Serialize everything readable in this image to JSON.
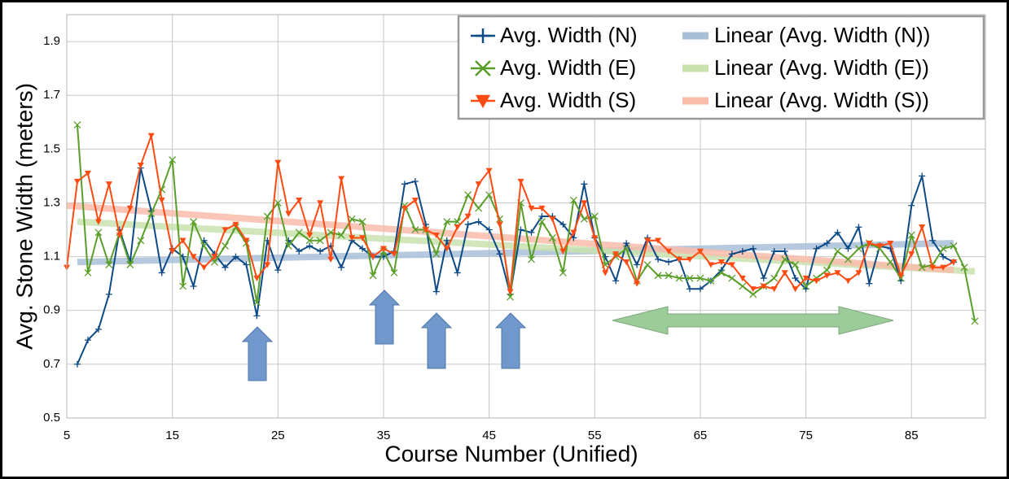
{
  "chart_data": {
    "type": "line",
    "xlabel": "Course Number (Unified)",
    "ylabel": "Avg. Stone Width (meters)",
    "x": [
      5,
      6,
      7,
      8,
      9,
      10,
      11,
      12,
      13,
      14,
      15,
      16,
      17,
      18,
      19,
      20,
      21,
      22,
      23,
      24,
      25,
      26,
      27,
      28,
      29,
      30,
      31,
      32,
      33,
      34,
      35,
      36,
      37,
      38,
      39,
      40,
      41,
      42,
      43,
      44,
      45,
      46,
      47,
      48,
      49,
      50,
      51,
      52,
      53,
      54,
      55,
      56,
      57,
      58,
      59,
      60,
      61,
      62,
      63,
      64,
      65,
      66,
      67,
      68,
      69,
      70,
      71,
      72,
      73,
      74,
      75,
      76,
      77,
      78,
      79,
      80,
      81,
      82,
      83,
      84,
      85,
      86,
      87,
      88,
      89,
      90,
      91
    ],
    "series": [
      {
        "name": "Avg. Width (N)",
        "color": "#0d4a86",
        "marker": "plus",
        "values": [
          null,
          0.7,
          0.79,
          0.83,
          0.96,
          1.2,
          1.08,
          1.43,
          1.27,
          1.04,
          1.13,
          1.1,
          0.99,
          1.16,
          1.11,
          1.06,
          1.1,
          1.07,
          0.88,
          1.16,
          1.05,
          1.16,
          1.12,
          1.14,
          1.12,
          1.14,
          1.06,
          1.16,
          1.13,
          1.1,
          1.1,
          1.12,
          1.37,
          1.38,
          1.22,
          0.97,
          1.16,
          1.04,
          1.22,
          1.23,
          1.2,
          1.11,
          0.96,
          1.2,
          1.19,
          1.25,
          1.25,
          1.22,
          1.17,
          1.37,
          1.17,
          1.1,
          1.01,
          1.15,
          1.07,
          1.17,
          1.09,
          1.08,
          1.09,
          0.98,
          0.98,
          1.01,
          1.05,
          1.11,
          1.12,
          1.13,
          1.02,
          1.12,
          1.12,
          1.02,
          0.98,
          1.13,
          1.15,
          1.19,
          1.13,
          1.21,
          1.0,
          1.14,
          1.13,
          1.01,
          1.29,
          1.4,
          1.16,
          1.1,
          1.08,
          null,
          null
        ]
      },
      {
        "name": "Avg. Width (E)",
        "color": "#5a9e2a",
        "marker": "cross",
        "values": [
          null,
          1.59,
          1.04,
          1.19,
          1.07,
          1.19,
          1.07,
          1.16,
          1.26,
          1.35,
          1.46,
          0.99,
          1.23,
          1.14,
          1.08,
          1.14,
          1.21,
          1.15,
          0.93,
          1.25,
          1.3,
          1.14,
          1.19,
          1.16,
          1.16,
          1.19,
          1.18,
          1.24,
          1.23,
          1.03,
          1.12,
          1.04,
          1.29,
          1.2,
          1.2,
          1.11,
          1.23,
          1.23,
          1.33,
          1.28,
          1.33,
          1.24,
          0.95,
          1.3,
          1.09,
          1.23,
          1.17,
          1.04,
          1.31,
          1.24,
          1.25,
          1.07,
          1.1,
          1.13,
          1.01,
          1.07,
          1.03,
          1.03,
          1.02,
          1.02,
          1.02,
          1.01,
          1.04,
          1.02,
          0.99,
          0.96,
          0.99,
          1.02,
          1.09,
          1.07,
          0.99,
          1.02,
          1.05,
          1.12,
          1.09,
          1.13,
          1.15,
          1.13,
          1.08,
          1.02,
          1.18,
          1.06,
          1.07,
          1.13,
          1.14,
          1.06,
          0.86
        ]
      },
      {
        "name": "Avg. Width (S)",
        "color": "#ff4b12",
        "marker": "triangle",
        "values": [
          1.06,
          1.38,
          1.41,
          1.23,
          1.37,
          1.18,
          1.28,
          1.44,
          1.55,
          1.31,
          1.12,
          1.16,
          1.1,
          1.06,
          1.1,
          1.2,
          1.22,
          1.16,
          1.02,
          1.07,
          1.45,
          1.26,
          1.31,
          1.18,
          1.3,
          1.09,
          1.39,
          1.17,
          1.17,
          1.1,
          1.13,
          1.11,
          1.28,
          1.31,
          1.2,
          1.18,
          1.13,
          1.21,
          1.25,
          1.37,
          1.42,
          1.22,
          0.97,
          1.38,
          1.28,
          1.28,
          1.24,
          1.12,
          1.19,
          1.3,
          1.17,
          1.04,
          1.11,
          1.08,
          1.0,
          1.16,
          1.16,
          1.12,
          1.09,
          1.09,
          1.12,
          1.07,
          1.08,
          1.07,
          1.02,
          0.98,
          0.99,
          0.98,
          1.04,
          0.98,
          1.02,
          1.01,
          1.03,
          1.04,
          1.01,
          1.04,
          1.15,
          1.14,
          1.15,
          1.03,
          1.11,
          1.21,
          1.06,
          1.06,
          1.08,
          null,
          null
        ]
      }
    ],
    "trendlines": [
      {
        "name": "Linear (Avg. Width (N))",
        "color": "#a9bfd8",
        "x": [
          6,
          89
        ],
        "values": [
          1.08,
          1.15
        ]
      },
      {
        "name": "Linear (Avg. Width (E))",
        "color": "#c9e2af",
        "x": [
          6,
          91
        ],
        "values": [
          1.23,
          1.045
        ]
      },
      {
        "name": "Linear (Avg. Width (S))",
        "color": "#f8bcaa",
        "x": [
          5,
          89
        ],
        "values": [
          1.29,
          1.05
        ]
      }
    ],
    "xlim": [
      5,
      92
    ],
    "xticks": [
      5,
      15,
      25,
      35,
      45,
      55,
      65,
      75,
      85
    ],
    "ylim": [
      0.5,
      2.0
    ],
    "yticks": [
      0.5,
      0.7,
      0.9,
      1.1,
      1.3,
      1.5,
      1.7,
      1.9
    ],
    "grid": true
  }
}
